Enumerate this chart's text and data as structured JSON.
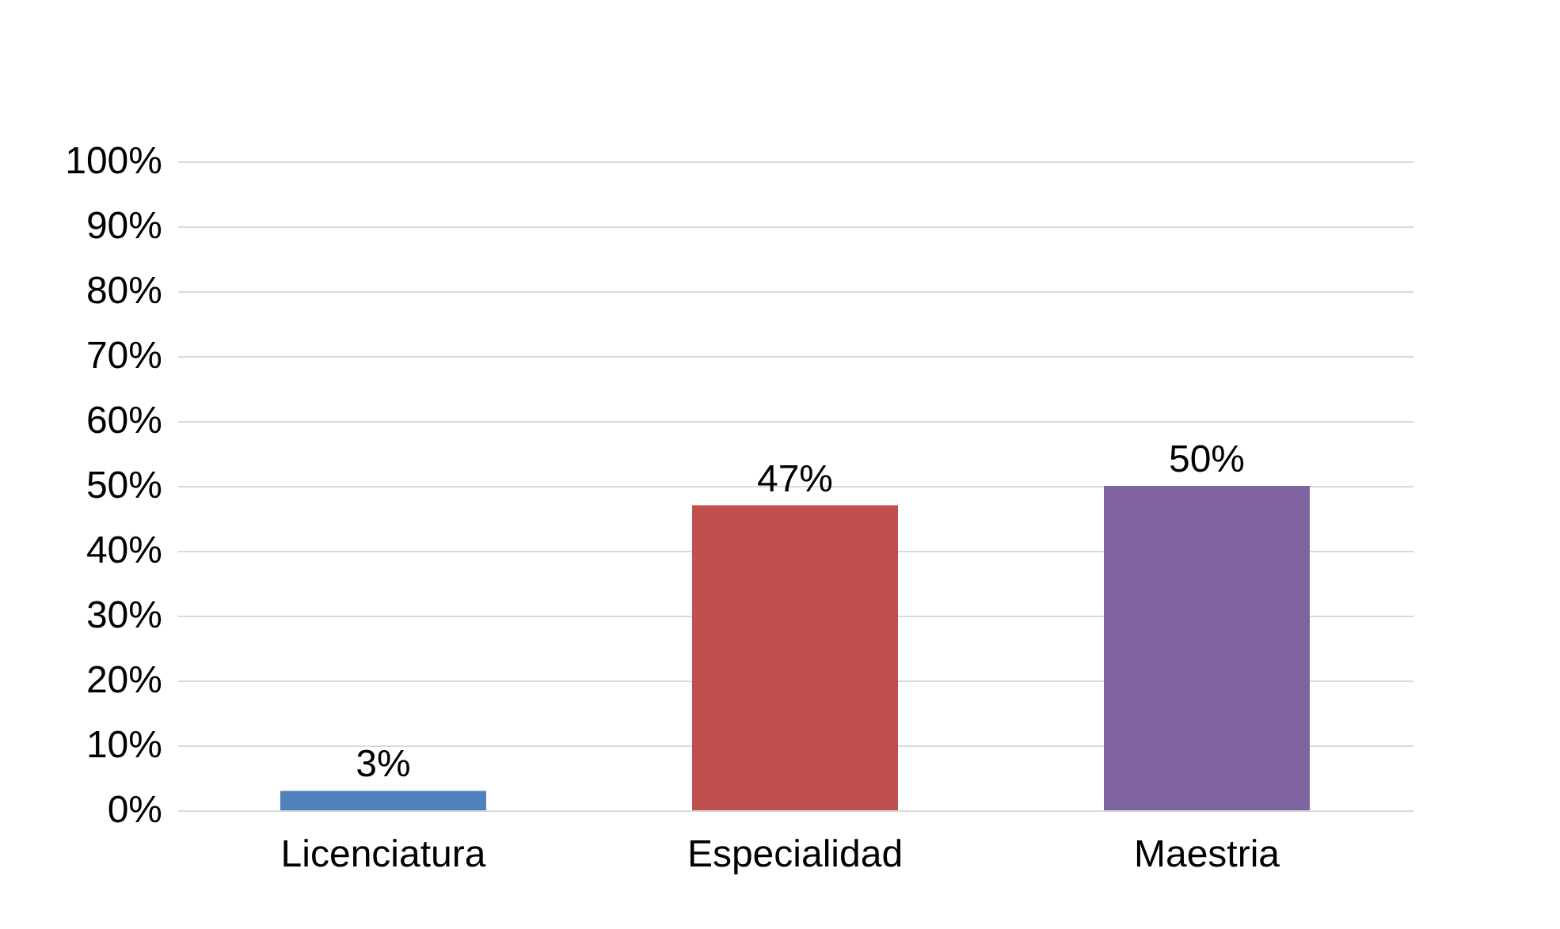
{
  "chart_data": {
    "type": "bar",
    "categories": [
      "Licenciatura",
      "Especialidad",
      "Maestria"
    ],
    "values": [
      3,
      47,
      50
    ],
    "colors": [
      "#4f81bd",
      "#c0504d",
      "#8064a2"
    ],
    "value_labels": [
      "3%",
      "47%",
      "50%"
    ],
    "ylim": [
      0,
      100
    ],
    "yticks": [
      {
        "value": 0,
        "label": "0%"
      },
      {
        "value": 10,
        "label": "10%"
      },
      {
        "value": 20,
        "label": "20%"
      },
      {
        "value": 30,
        "label": "30%"
      },
      {
        "value": 40,
        "label": "40%"
      },
      {
        "value": 50,
        "label": "50%"
      },
      {
        "value": 60,
        "label": "60%"
      },
      {
        "value": 70,
        "label": "70%"
      },
      {
        "value": 80,
        "label": "80%"
      },
      {
        "value": 90,
        "label": "90%"
      },
      {
        "value": 100,
        "label": "100%"
      }
    ],
    "grid": "y",
    "legend": false
  }
}
